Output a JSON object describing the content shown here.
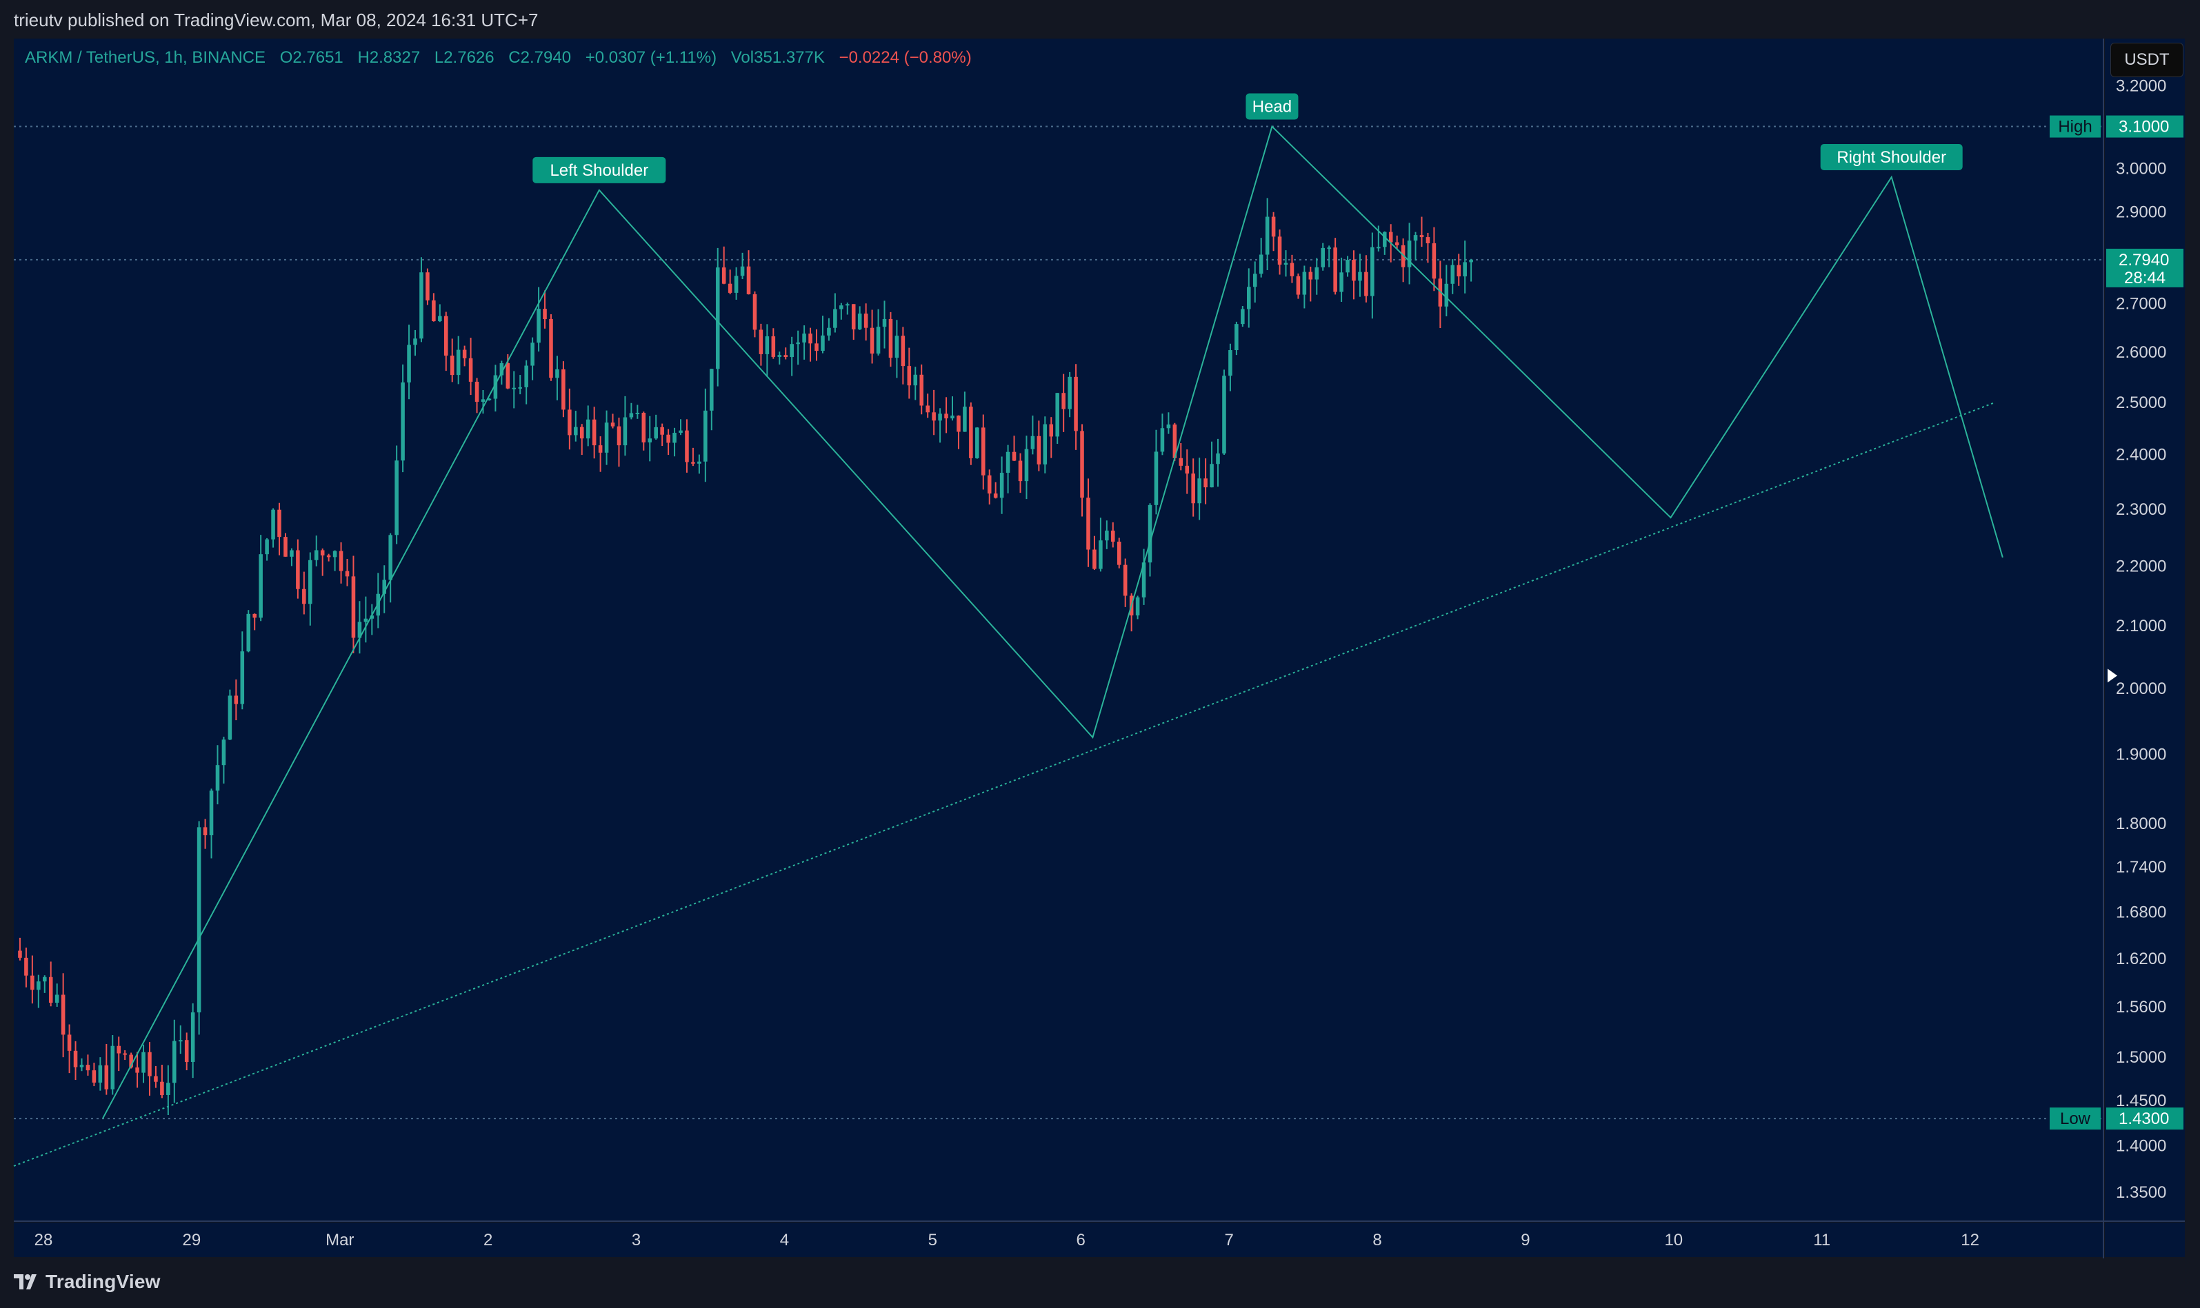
{
  "header": {
    "publisher": "trieutv published on TradingView.com, Mar 08, 2024 16:31 UTC+7"
  },
  "legend": {
    "symbol": "ARKM / TetherUS, 1h, BINANCE",
    "open": "O2.7651",
    "high": "H2.8327",
    "low": "L2.7626",
    "close": "C2.7940",
    "change": "+0.0307 (+1.11%)",
    "volume": "Vol351.377K",
    "change2": "−0.0224 (−0.80%)"
  },
  "currency_button": "USDT",
  "footer": {
    "brand": "TradingView"
  },
  "colors": {
    "background": "#021538",
    "up": "#26a69a",
    "down": "#ef5350",
    "drawing": "#2bb39a",
    "label_bg": "#089981",
    "text": "#d1d4dc"
  },
  "chart_data": {
    "type": "candlestick",
    "y_axis": {
      "scale": "log",
      "ylim": [
        1.32,
        3.32
      ],
      "ticks": [
        "3.2000",
        "3.0000",
        "2.9000",
        "2.7000",
        "2.6000",
        "2.5000",
        "2.4000",
        "2.3000",
        "2.2000",
        "2.1000",
        "2.0000",
        "1.9000",
        "1.8000",
        "1.7400",
        "1.6800",
        "1.6200",
        "1.5600",
        "1.5000",
        "1.4500",
        "1.4000",
        "1.3500"
      ]
    },
    "x_axis": {
      "range_days": [
        -0.2,
        13.9
      ],
      "ticks": [
        {
          "label": "28",
          "day": 0
        },
        {
          "label": "29",
          "day": 1
        },
        {
          "label": "Mar",
          "day": 2
        },
        {
          "label": "2",
          "day": 3
        },
        {
          "label": "3",
          "day": 4
        },
        {
          "label": "4",
          "day": 5
        },
        {
          "label": "5",
          "day": 6
        },
        {
          "label": "6",
          "day": 7
        },
        {
          "label": "7",
          "day": 8
        },
        {
          "label": "8",
          "day": 9
        },
        {
          "label": "9",
          "day": 10
        },
        {
          "label": "10",
          "day": 11
        },
        {
          "label": "11",
          "day": 12
        },
        {
          "label": "12",
          "day": 13
        }
      ]
    },
    "key_prices": [
      {
        "value": 3.1,
        "label": "High",
        "text": "3.1000"
      },
      {
        "value": 2.794,
        "text": "2.7940",
        "countdown": "28:44"
      },
      {
        "value": 1.43,
        "label": "Low",
        "text": "1.4300"
      }
    ],
    "pattern": {
      "points": [
        {
          "day": 0.4,
          "price": 1.43
        },
        {
          "day": 3.75,
          "price": 2.95
        },
        {
          "day": 7.08,
          "price": 1.925
        },
        {
          "day": 8.29,
          "price": 3.1
        },
        {
          "day": 10.98,
          "price": 2.285
        },
        {
          "day": 12.47,
          "price": 2.98
        },
        {
          "day": 13.22,
          "price": 2.215
        }
      ],
      "labels": [
        {
          "text": "Left Shoulder",
          "day": 3.75,
          "price": 2.95
        },
        {
          "text": "Head",
          "day": 8.29,
          "price": 3.1
        },
        {
          "text": "Right Shoulder",
          "day": 12.47,
          "price": 2.98
        }
      ]
    },
    "trendline": [
      {
        "day": -0.2,
        "price": 1.378
      },
      {
        "day": 13.17,
        "price": 2.5
      }
    ],
    "anchors": [
      {
        "day": -0.2,
        "price": 1.63
      },
      {
        "day": 0.1,
        "price": 1.57
      },
      {
        "day": 0.3,
        "price": 1.46
      },
      {
        "day": 0.5,
        "price": 1.5
      },
      {
        "day": 0.8,
        "price": 1.47
      },
      {
        "day": 1.0,
        "price": 1.53
      },
      {
        "day": 1.05,
        "price": 1.78
      },
      {
        "day": 1.3,
        "price": 2.0
      },
      {
        "day": 1.55,
        "price": 2.3
      },
      {
        "day": 1.75,
        "price": 2.17
      },
      {
        "day": 1.95,
        "price": 2.26
      },
      {
        "day": 2.1,
        "price": 2.1
      },
      {
        "day": 2.3,
        "price": 2.14
      },
      {
        "day": 2.45,
        "price": 2.6
      },
      {
        "day": 2.55,
        "price": 2.72
      },
      {
        "day": 2.75,
        "price": 2.58
      },
      {
        "day": 3.0,
        "price": 2.52
      },
      {
        "day": 3.25,
        "price": 2.58
      },
      {
        "day": 3.35,
        "price": 2.66
      },
      {
        "day": 3.6,
        "price": 2.42
      },
      {
        "day": 3.9,
        "price": 2.45
      },
      {
        "day": 4.2,
        "price": 2.44
      },
      {
        "day": 4.45,
        "price": 2.42
      },
      {
        "day": 4.55,
        "price": 2.73
      },
      {
        "day": 4.7,
        "price": 2.75
      },
      {
        "day": 4.85,
        "price": 2.63
      },
      {
        "day": 5.2,
        "price": 2.62
      },
      {
        "day": 5.4,
        "price": 2.68
      },
      {
        "day": 5.7,
        "price": 2.62
      },
      {
        "day": 5.95,
        "price": 2.52
      },
      {
        "day": 6.2,
        "price": 2.47
      },
      {
        "day": 6.4,
        "price": 2.35
      },
      {
        "day": 6.7,
        "price": 2.4
      },
      {
        "day": 6.93,
        "price": 2.53
      },
      {
        "day": 7.07,
        "price": 2.16
      },
      {
        "day": 7.2,
        "price": 2.29
      },
      {
        "day": 7.35,
        "price": 2.12
      },
      {
        "day": 7.55,
        "price": 2.45
      },
      {
        "day": 7.75,
        "price": 2.32
      },
      {
        "day": 7.88,
        "price": 2.36
      },
      {
        "day": 8.0,
        "price": 2.57
      },
      {
        "day": 8.15,
        "price": 2.72
      },
      {
        "day": 8.27,
        "price": 2.95
      },
      {
        "day": 8.4,
        "price": 2.72
      },
      {
        "day": 8.55,
        "price": 2.8
      },
      {
        "day": 8.75,
        "price": 2.76
      },
      {
        "day": 8.9,
        "price": 2.74
      },
      {
        "day": 9.05,
        "price": 2.83
      },
      {
        "day": 9.2,
        "price": 2.81
      },
      {
        "day": 9.32,
        "price": 2.85
      },
      {
        "day": 9.42,
        "price": 2.73
      },
      {
        "day": 9.55,
        "price": 2.79
      },
      {
        "day": 9.65,
        "price": 2.794
      }
    ]
  }
}
